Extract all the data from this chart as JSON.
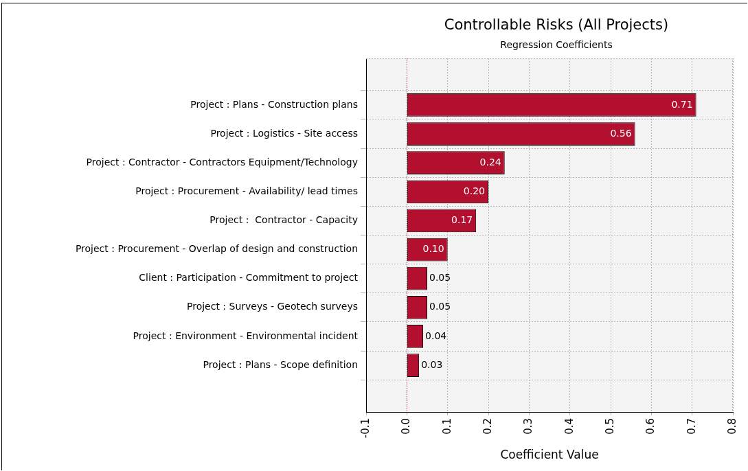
{
  "chart_data": {
    "type": "bar",
    "orientation": "horizontal",
    "title": "Controllable Risks (All Projects)",
    "subtitle": "Regression Coefficients",
    "xlabel": "Coefficient Value",
    "categories": [
      "Project : Plans - Construction plans",
      "Project : Logistics - Site access",
      "Project : Contractor - Contractors Equipment/Technology",
      "Project : Procurement - Availability/ lead times",
      "Project :  Contractor - Capacity",
      "Project : Procurement - Overlap of design and construction",
      "Client : Participation - Commitment to project",
      "Project : Surveys - Geotech surveys",
      "Project : Environment - Environmental incident",
      "Project : Plans - Scope definition"
    ],
    "values": [
      0.71,
      0.56,
      0.24,
      0.2,
      0.17,
      0.1,
      0.05,
      0.05,
      0.04,
      0.03
    ],
    "value_labels": [
      "0.71",
      "0.56",
      "0.24",
      "0.20",
      "0.17",
      "0.10",
      "0.05",
      "0.05",
      "0.04",
      "0.03"
    ],
    "color": "#b3102f",
    "xlim": [
      -0.1,
      0.8
    ],
    "xticks": [
      -0.1,
      {
        "value": 0,
        "label": "0.0"
      },
      0.1,
      0.2,
      0.3,
      0.4,
      0.5,
      0.6,
      0.7,
      0.8
    ],
    "grid": true,
    "ref_lines": [
      {
        "axis": "x",
        "value": 0,
        "color": "#e0143c",
        "line_style": "dotted"
      }
    ]
  }
}
